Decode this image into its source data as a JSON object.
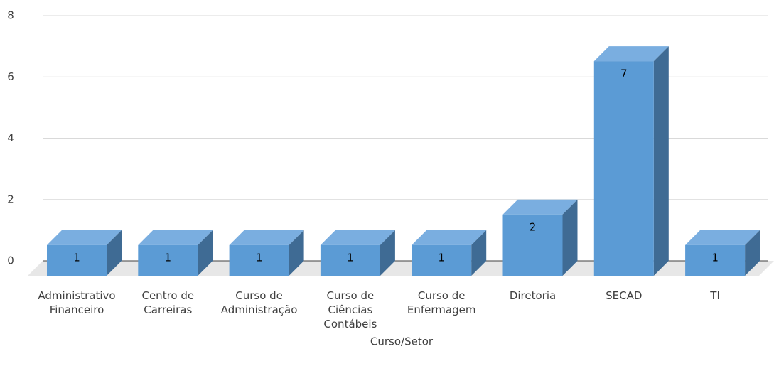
{
  "chart_data": {
    "type": "bar3d",
    "x_label": "Curso/Setor",
    "categories": [
      "Administrativo Financeiro",
      "Centro de Carreiras",
      "Curso de Administração",
      "Curso de Ciências Contábeis",
      "Curso de Enfermagem",
      "Diretoria",
      "SECAD",
      "TI"
    ],
    "values": [
      1,
      1,
      1,
      1,
      1,
      2,
      7,
      1
    ],
    "color": "#5b9bd5",
    "ylim": [
      0,
      8
    ],
    "yticks": [
      0,
      2,
      4,
      6,
      8
    ],
    "grid": true
  }
}
